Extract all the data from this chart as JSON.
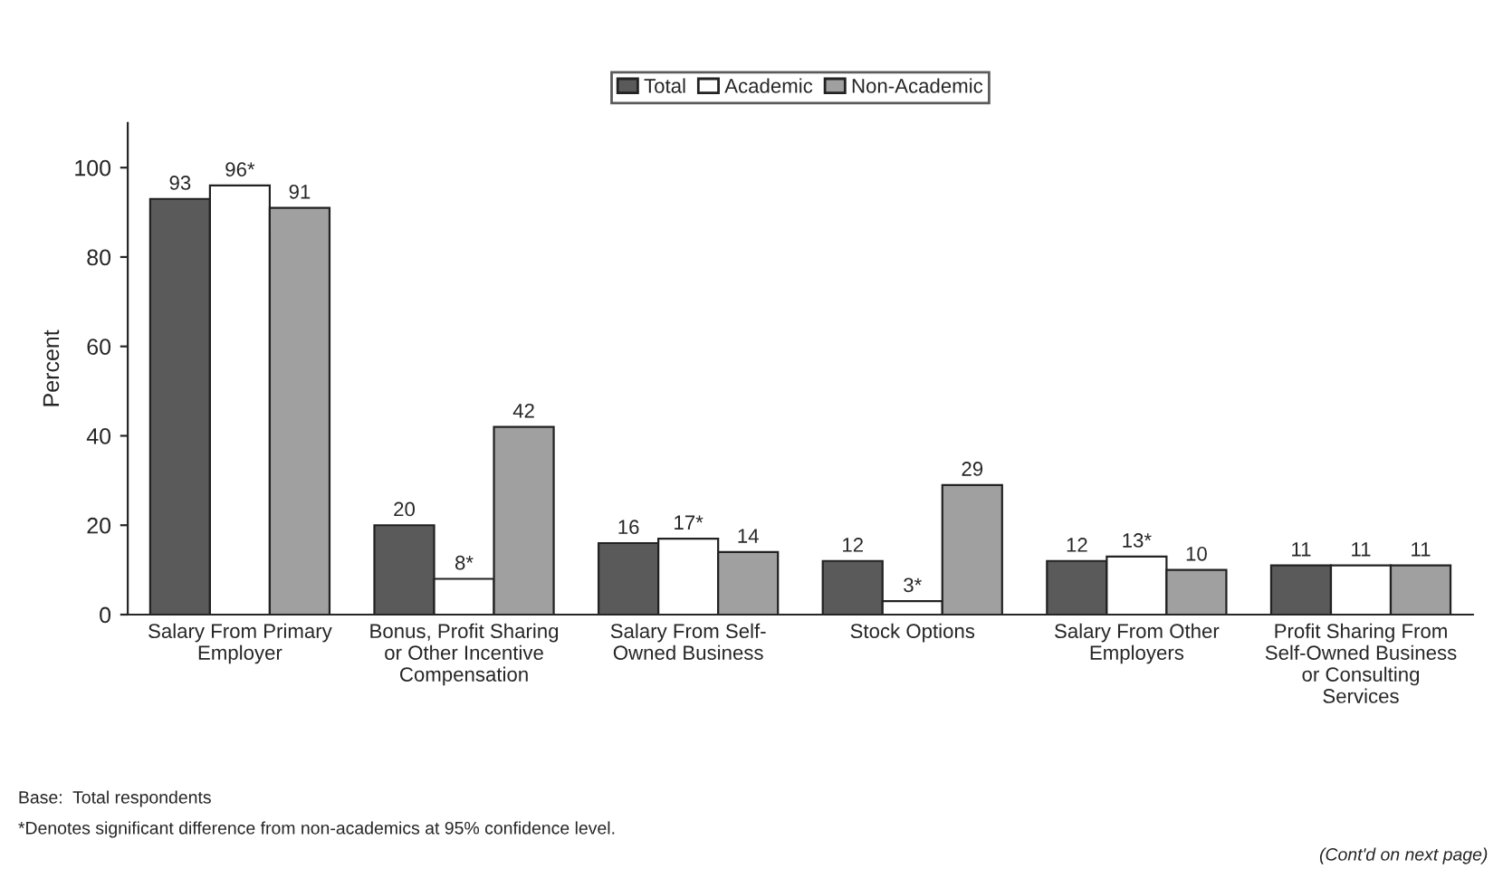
{
  "chart_data": {
    "type": "bar",
    "categories": [
      "Salary From Primary\nEmployer",
      "Bonus, Profit Sharing\nor Other Incentive\nCompensation",
      "Salary From Self-\nOwned Business",
      "Stock Options",
      "Salary From Other\nEmployers",
      "Profit Sharing From\nSelf-Owned Business\nor Consulting\nServices"
    ],
    "series": [
      {
        "name": "Total",
        "color": "#5a5a5a",
        "values": [
          93,
          20,
          16,
          12,
          12,
          11
        ],
        "value_labels": [
          "93",
          "20",
          "16",
          "12",
          "12",
          "11"
        ]
      },
      {
        "name": "Academic",
        "color": "#ffffff",
        "values": [
          96,
          8,
          17,
          3,
          13,
          11
        ],
        "value_labels": [
          "96*",
          "8*",
          "17*",
          "3*",
          "13*",
          "11"
        ]
      },
      {
        "name": "Non-Academic",
        "color": "#a0a0a0",
        "values": [
          91,
          42,
          14,
          29,
          10,
          11
        ],
        "value_labels": [
          "91",
          "42",
          "14",
          "29",
          "10",
          "11"
        ]
      }
    ],
    "ylabel": "Percent",
    "ylim": [
      0,
      110
    ],
    "yticks": [
      0,
      20,
      40,
      60,
      80,
      100
    ],
    "legend": "top",
    "grid": false,
    "annotations": [
      "Base:  Total respondents",
      "*Denotes significant difference from non-academics at 95% confidence level.",
      "(Cont'd on next page)"
    ]
  }
}
